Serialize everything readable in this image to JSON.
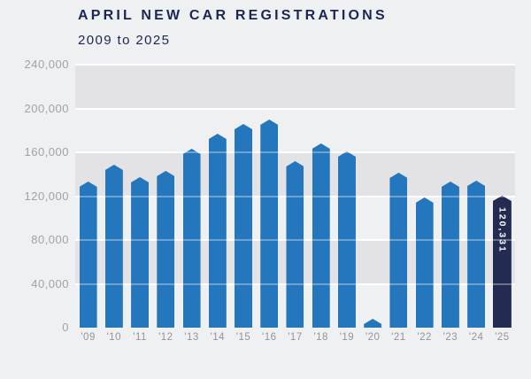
{
  "chart": {
    "title": "APRIL NEW CAR REGISTRATIONS",
    "subtitle": "2009 to 2025"
  },
  "chart_data": {
    "type": "bar",
    "title": "APRIL NEW CAR REGISTRATIONS",
    "subtitle": "2009 to 2025",
    "categories": [
      "'09",
      "'10",
      "'11",
      "'12",
      "'13",
      "'14",
      "'15",
      "'16",
      "'17",
      "'18",
      "'19",
      "'20",
      "'21",
      "'22",
      "'23",
      "'24",
      "'25"
    ],
    "values": [
      133475,
      148793,
      137746,
      142885,
      163357,
      176820,
      185778,
      189505,
      152076,
      167911,
      161064,
      4321,
      141583,
      119167,
      132990,
      134274,
      120331
    ],
    "highlight_index": 16,
    "highlight_value_label": "120,331",
    "xlabel": "",
    "ylabel": "",
    "ylim": [
      0,
      240000
    ],
    "ytick_step": 40000,
    "ytick_labels_top_to_bottom": [
      "240,000",
      "200,000",
      "160,000",
      "120,000",
      "80,000",
      "40,000",
      "0"
    ],
    "grid": "horizontal white gridlines every 40,000 with alternating shaded background bands",
    "legend": "none",
    "colors": {
      "bar": "#2476bd",
      "highlight_bar": "#232b52",
      "title_text": "#1c2654",
      "axis_text_y": "#a2a2a6",
      "axis_text_x": "#949499",
      "background": "#eff0f2",
      "band_shade": "#e3e3e6",
      "value_label_text": "#ffffff"
    }
  }
}
